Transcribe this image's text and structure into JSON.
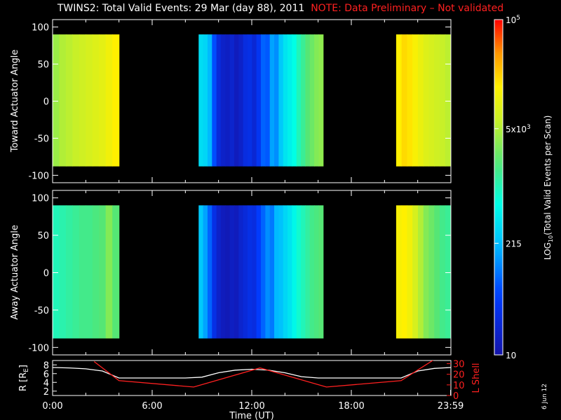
{
  "title": {
    "main": "TWINS2: Total Valid Events: 29 Mar (day  88), 2011",
    "note": "NOTE: Data Preliminary – Not validated"
  },
  "stamp": "6 Jun 12",
  "colors": {
    "background": "#000000",
    "text": "#ffffff",
    "note": "#ff2020",
    "r_line": "#ffffff",
    "lshell_line": "#ff2020"
  },
  "chart_data": [
    {
      "type": "heatmap",
      "panel": "top",
      "ylabel": "Toward Actuator Angle",
      "ylim": [
        -110,
        110
      ],
      "yticks": [
        "100",
        "50",
        "0",
        "-50",
        "-100"
      ],
      "ytick_values": [
        100,
        50,
        0,
        -50,
        -100
      ],
      "xlim": [
        0,
        24
      ],
      "data_y_range": [
        -88,
        90
      ],
      "data_segments": [
        {
          "x": [
            0.0,
            4.0
          ],
          "profile": [
            3.6,
            3.7,
            3.75,
            3.8,
            3.85,
            3.9,
            3.95,
            4.0,
            4.1,
            4.2
          ]
        },
        {
          "x": [
            8.8,
            16.3
          ],
          "profile": [
            2.55,
            2.5,
            2.3,
            1.8,
            1.4,
            1.25,
            1.2,
            1.3,
            1.15,
            1.25,
            1.45,
            1.5,
            1.35,
            1.6,
            1.9,
            1.85,
            2.2,
            2.1,
            2.4,
            2.6,
            2.7,
            2.8,
            3.0,
            3.15,
            3.3,
            3.4,
            3.5,
            3.55
          ]
        },
        {
          "x": [
            20.7,
            23.98
          ],
          "profile": [
            4.2,
            4.3,
            4.25,
            4.15,
            4.05,
            3.95,
            3.9,
            3.85,
            3.8,
            3.75
          ]
        }
      ]
    },
    {
      "type": "heatmap",
      "panel": "middle",
      "ylabel": "Away Actuator Angle",
      "ylim": [
        -110,
        110
      ],
      "yticks": [
        "100",
        "50",
        "0",
        "-50",
        "-100"
      ],
      "ytick_values": [
        100,
        50,
        0,
        -50,
        -100
      ],
      "xlim": [
        0,
        24
      ],
      "data_y_range": [
        -88,
        90
      ],
      "data_segments": [
        {
          "x": [
            0.0,
            4.0
          ],
          "profile": [
            3.0,
            3.05,
            3.1,
            3.15,
            3.2,
            3.2,
            3.25,
            3.3,
            3.5,
            3.3
          ]
        },
        {
          "x": [
            8.8,
            16.3
          ],
          "profile": [
            2.4,
            2.2,
            1.9,
            1.5,
            1.25,
            1.15,
            1.1,
            1.2,
            1.15,
            1.3,
            1.4,
            1.5,
            1.45,
            1.7,
            1.9,
            2.1,
            2.0,
            2.3,
            2.35,
            2.5,
            2.6,
            2.75,
            2.9,
            3.0,
            3.1,
            3.2,
            3.25,
            3.3
          ]
        },
        {
          "x": [
            20.7,
            23.98
          ],
          "profile": [
            4.15,
            4.2,
            4.1,
            3.9,
            3.7,
            3.5,
            3.4,
            3.3,
            3.2,
            3.15
          ]
        }
      ]
    },
    {
      "type": "line",
      "panel": "bottom",
      "xlabel": "Time (UT)",
      "xticks": [
        "0:00",
        "6:00",
        "12:00",
        "18:00",
        "23:59"
      ],
      "xtick_values": [
        0,
        6,
        12,
        18,
        23.98
      ],
      "ylabel_left": "R [R",
      "ylabel_left_sub": "E",
      "ylabel_left_end": "]",
      "ylim_left": [
        1,
        9
      ],
      "yticks_left": [
        "8",
        "6",
        "4",
        "2"
      ],
      "ytick_values_left": [
        8,
        6,
        4,
        2
      ],
      "ylabel_right": "L Shell",
      "ylim_right": [
        0,
        33
      ],
      "yticks_right": [
        "30",
        "20",
        "10",
        "0"
      ],
      "ytick_values_right": [
        30,
        20,
        10,
        0
      ],
      "series": [
        {
          "axis": "left",
          "x": [
            0,
            1,
            2,
            3,
            4,
            5,
            6,
            7,
            8,
            9,
            10,
            11,
            12,
            13,
            14,
            15,
            16,
            17,
            18,
            19,
            20,
            21,
            22,
            23,
            24
          ],
          "y": [
            7.4,
            7.3,
            7.1,
            6.6,
            5.0,
            5.0,
            5.0,
            5.0,
            5.0,
            5.2,
            6.2,
            6.8,
            7.0,
            6.8,
            6.2,
            5.3,
            5.0,
            5.0,
            5.0,
            5.0,
            5.0,
            5.0,
            6.6,
            7.2,
            7.4
          ]
        },
        {
          "axis": "right",
          "x": [
            2.5,
            4.0,
            8.5,
            12.5,
            16.5,
            21.0,
            23.0
          ],
          "y": [
            32,
            14,
            8,
            26,
            8,
            14,
            34
          ]
        }
      ]
    },
    {
      "type": "colorbar",
      "label": "LOG",
      "label_sub": "10",
      "label_rest": "(Total Valid  Events per Scan)",
      "scale": "log",
      "range": [
        10,
        100000
      ],
      "tick_labels": [
        {
          "base": "10",
          "sup": "5",
          "log": 5
        },
        {
          "base": "5x10",
          "sup": "3",
          "log": 3.699
        },
        {
          "base": "215",
          "sup": "",
          "log": 2.332
        },
        {
          "base": "10",
          "sup": "",
          "log": 1
        }
      ]
    }
  ]
}
